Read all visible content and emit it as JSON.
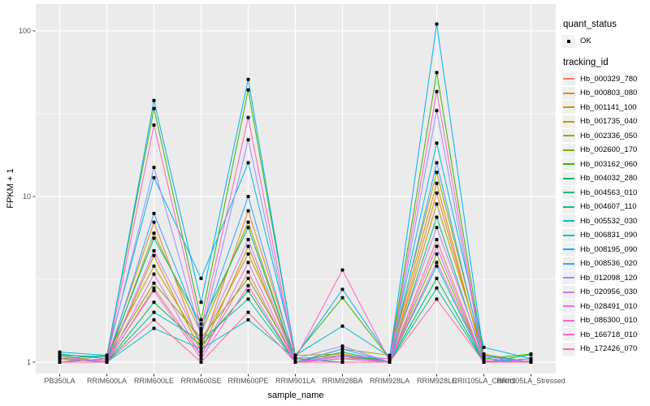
{
  "figure": {
    "background": "#FFFFFF",
    "panel_background": "#EBEBEB",
    "grid_color": "#FFFFFF",
    "tick_color": "#333333",
    "tick_label_color": "#4D4D4D",
    "axis_title_color": "#000000",
    "point_color": "#000000"
  },
  "legend": {
    "quant_title": "quant_status",
    "ok_label": "OK",
    "tracking_title": "tracking_id"
  },
  "chart_data": {
    "type": "line",
    "title": "",
    "xlabel": "sample_name",
    "ylabel": "FPKM + 1",
    "y_scale": "log10",
    "ylim": [
      0.85,
      145
    ],
    "grid": true,
    "legend_position": "right",
    "yticks": [
      {
        "label": "1",
        "value": 1
      },
      {
        "label": "10",
        "value": 10
      },
      {
        "label": "100",
        "value": 100
      }
    ],
    "minor_gridlines": [
      3.1623,
      31.623
    ],
    "marker": "black-square",
    "categories": [
      "PB350LA",
      "RRIM600LA",
      "RRIM600LE",
      "RRIM600SE",
      "RRIM600PE",
      "RRIM901LA",
      "RRIM928BA",
      "RRIM928LA",
      "RRIM928LE",
      "RRII105LA_Control",
      "RRII105LA_Stressed"
    ],
    "series": [
      {
        "name": "Hb_000329_780",
        "color": "#F8766D",
        "values": [
          1.0,
          1.0,
          2.8,
          1.1,
          3.5,
          1.0,
          1.05,
          1.0,
          5.5,
          1.0,
          1.0
        ]
      },
      {
        "name": "Hb_000803_080",
        "color": "#E88526",
        "values": [
          1.0,
          1.05,
          7.0,
          1.2,
          8.2,
          1.05,
          1.1,
          1.0,
          10.5,
          1.05,
          1.0
        ]
      },
      {
        "name": "Hb_001141_100",
        "color": "#D89000",
        "values": [
          1.05,
          1.0,
          4.4,
          1.15,
          5.0,
          1.0,
          1.05,
          1.05,
          12.0,
          1.0,
          1.05
        ]
      },
      {
        "name": "Hb_001735_040",
        "color": "#C09B00",
        "values": [
          1.0,
          1.1,
          3.8,
          1.3,
          4.5,
          1.1,
          1.12,
          1.0,
          9.0,
          1.12,
          1.0
        ]
      },
      {
        "name": "Hb_002336_050",
        "color": "#A3A500",
        "values": [
          1.1,
          1.0,
          6.0,
          1.5,
          7.0,
          1.0,
          1.2,
          1.1,
          14.0,
          1.1,
          1.0
        ]
      },
      {
        "name": "Hb_002600_170",
        "color": "#7CAE00",
        "values": [
          1.0,
          1.05,
          3.0,
          1.4,
          3.2,
          1.05,
          1.0,
          1.0,
          4.5,
          1.0,
          1.0
        ]
      },
      {
        "name": "Hb_003162_060",
        "color": "#39B600",
        "values": [
          1.05,
          1.1,
          34.0,
          1.8,
          44.0,
          1.1,
          2.45,
          1.05,
          56.0,
          1.05,
          1.12
        ]
      },
      {
        "name": "Hb_004032_280",
        "color": "#00BB4E",
        "values": [
          1.0,
          1.0,
          2.3,
          1.25,
          2.7,
          1.0,
          1.15,
          1.0,
          3.2,
          1.0,
          1.11
        ]
      },
      {
        "name": "Hb_004563_010",
        "color": "#00BF7D",
        "values": [
          1.12,
          1.05,
          5.6,
          1.7,
          6.5,
          1.0,
          1.1,
          1.0,
          7.5,
          1.02,
          1.0
        ]
      },
      {
        "name": "Hb_004607_110",
        "color": "#00C1A3",
        "values": [
          1.0,
          1.0,
          2.0,
          1.35,
          2.4,
          1.0,
          1.05,
          1.0,
          2.8,
          1.0,
          1.0
        ]
      },
      {
        "name": "Hb_005532_030",
        "color": "#00BFC4",
        "values": [
          1.05,
          1.0,
          1.6,
          1.2,
          1.8,
          1.05,
          1.0,
          1.0,
          3.8,
          1.0,
          1.05
        ]
      },
      {
        "name": "Hb_006831_090",
        "color": "#00BAE0",
        "values": [
          1.15,
          1.1,
          13.0,
          3.2,
          16.0,
          1.1,
          1.65,
          1.08,
          21.0,
          1.23,
          1.05
        ]
      },
      {
        "name": "Hb_008195_090",
        "color": "#00B0F6",
        "values": [
          1.1,
          1.08,
          38.0,
          2.3,
          51.0,
          1.08,
          2.75,
          1.06,
          110.0,
          1.1,
          1.0
        ]
      },
      {
        "name": "Hb_008536_020",
        "color": "#35A2FF",
        "values": [
          1.05,
          1.0,
          7.9,
          1.55,
          10.0,
          1.0,
          1.2,
          1.0,
          16.0,
          1.05,
          1.0
        ]
      },
      {
        "name": "Hb_012098_120",
        "color": "#9590FF",
        "values": [
          1.0,
          1.05,
          15.0,
          1.45,
          22.0,
          1.05,
          1.25,
          1.0,
          33.0,
          1.0,
          1.0
        ]
      },
      {
        "name": "Hb_020956_030",
        "color": "#C77CFF",
        "values": [
          1.08,
          1.0,
          4.7,
          1.3,
          5.5,
          1.0,
          1.1,
          1.05,
          6.5,
          1.08,
          1.0
        ]
      },
      {
        "name": "Hb_028491_010",
        "color": "#E76BF3",
        "values": [
          1.0,
          1.0,
          3.4,
          1.1,
          4.0,
          1.0,
          1.05,
          1.0,
          5.0,
          1.0,
          1.02
        ]
      },
      {
        "name": "Hb_086300_010",
        "color": "#FA62DB",
        "values": [
          1.05,
          1.02,
          2.7,
          1.05,
          2.9,
          1.0,
          1.08,
          1.0,
          4.0,
          1.02,
          1.0
        ]
      },
      {
        "name": "Hb_166718_010",
        "color": "#FF62BC",
        "values": [
          1.0,
          1.05,
          27.0,
          1.6,
          30.0,
          1.05,
          3.6,
          1.02,
          43.0,
          1.0,
          1.0
        ]
      },
      {
        "name": "Hb_172426_070",
        "color": "#FF6A98",
        "values": [
          1.0,
          1.0,
          1.8,
          1.0,
          2.0,
          1.0,
          1.0,
          1.0,
          2.4,
          1.0,
          1.0
        ]
      }
    ]
  }
}
